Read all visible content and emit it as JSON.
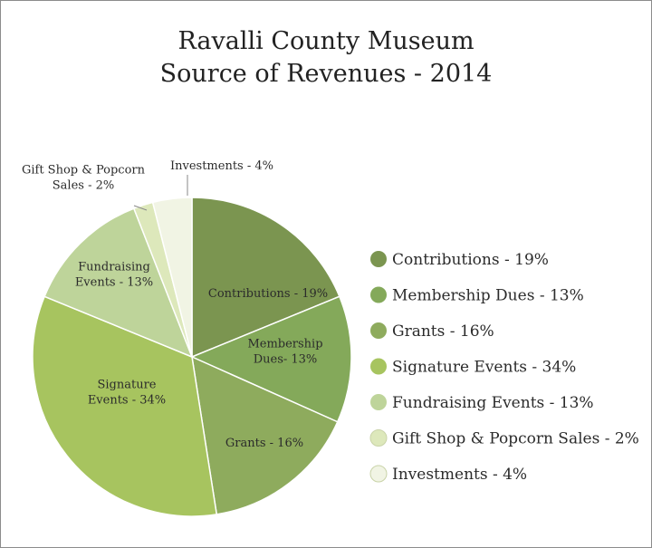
{
  "chart_data": {
    "type": "pie",
    "title": [
      "Ravalli County Museum",
      "Source of Revenues - 2014"
    ],
    "slices": [
      {
        "name": "Contributions",
        "value": 19,
        "color": "#7b9550",
        "label_lines": [
          "Contributions - 19%"
        ],
        "legend": "Contributions - 19%"
      },
      {
        "name": "Membership Dues",
        "value": 13,
        "color": "#84a95a",
        "label_lines": [
          "Membership",
          "Dues- 13%"
        ],
        "legend": "Membership Dues - 13%"
      },
      {
        "name": "Grants",
        "value": 16,
        "color": "#8eab5d",
        "label_lines": [
          "Grants - 16%"
        ],
        "legend": "Grants - 16%"
      },
      {
        "name": "Signature Events",
        "value": 34,
        "color": "#a7c45f",
        "label_lines": [
          "Signature",
          "Events - 34%"
        ],
        "legend": "Signature Events - 34%"
      },
      {
        "name": "Fundraising Events",
        "value": 13,
        "color": "#bed49a",
        "label_lines": [
          "Fundraising",
          "Events - 13%"
        ],
        "legend": "Fundraising Events - 13%"
      },
      {
        "name": "Gift Shop & Popcorn Sales",
        "value": 2,
        "color": "#dde8bb",
        "label_lines": [
          "Gift Shop & Popcorn",
          "Sales - 2%"
        ],
        "legend": "Gift Shop & Popcorn Sales - 2%"
      },
      {
        "name": "Investments",
        "value": 4,
        "color": "#f1f4e4",
        "label_lines": [
          "Investments - 4%"
        ],
        "legend": "Investments - 4%"
      }
    ],
    "legend_position": "right"
  }
}
